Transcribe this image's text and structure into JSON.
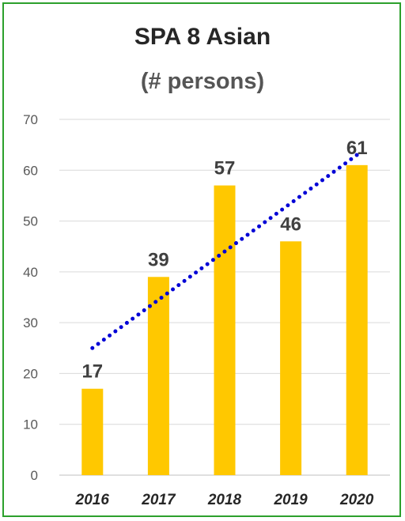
{
  "chart_data": {
    "type": "bar",
    "title": "SPA 8 Asian",
    "subtitle": "(# persons)",
    "categories": [
      "2016",
      "2017",
      "2018",
      "2019",
      "2020"
    ],
    "values": [
      17,
      39,
      57,
      46,
      61
    ],
    "ylim": [
      0,
      70
    ],
    "yticks": [
      0,
      10,
      20,
      30,
      40,
      50,
      60,
      70
    ],
    "grid": true,
    "bar_color": "#ffc800",
    "trendline": {
      "style": "dotted",
      "color": "#0000d6",
      "type": "linear"
    },
    "border_color": "#2ca02c"
  }
}
